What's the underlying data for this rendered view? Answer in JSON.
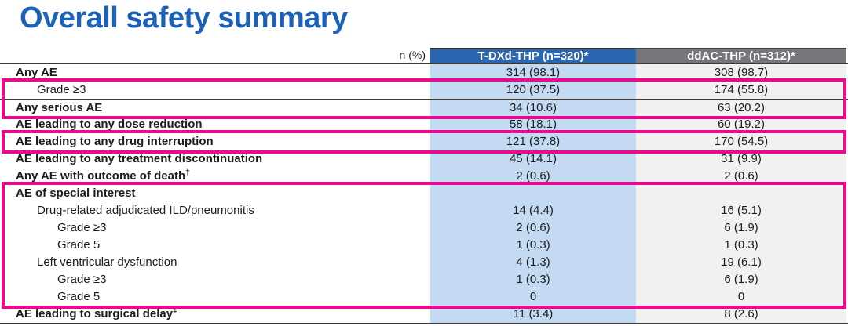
{
  "title": "Overall safety summary",
  "colors": {
    "title_blue": "#1c61b8",
    "header_blue": "#2a67b0",
    "header_gray": "#75767a",
    "tdxd_column_band": "#c4daf3",
    "ddac_column_band": "#f2f1f1",
    "highlight_magenta": "#e90b8e",
    "rule_line": "#3a3a3c",
    "text": "#1c1c1c"
  },
  "table": {
    "unit_label": "n (%)",
    "columns": [
      {
        "label": "T-DXd-THP (n=320)*"
      },
      {
        "label": "ddAC-THP (n=312)*"
      }
    ],
    "rows": [
      {
        "label": "Any AE",
        "sup": "",
        "bold": true,
        "indent": 0,
        "values": [
          "314 (98.1)",
          "308 (98.7)"
        ]
      },
      {
        "label": "Grade ≥3",
        "sup": "",
        "bold": false,
        "indent": 1,
        "values": [
          "120 (37.5)",
          "174 (55.8)"
        ]
      },
      {
        "label": "Any serious AE",
        "sup": "",
        "bold": true,
        "indent": 0,
        "values": [
          "34 (10.6)",
          "63 (20.2)"
        ]
      },
      {
        "label": "AE leading to any dose reduction",
        "sup": "",
        "bold": true,
        "indent": 0,
        "values": [
          "58 (18.1)",
          "60 (19.2)"
        ]
      },
      {
        "label": "AE leading to any drug interruption",
        "sup": "",
        "bold": true,
        "indent": 0,
        "values": [
          "121 (37.8)",
          "170 (54.5)"
        ]
      },
      {
        "label": "AE leading to any treatment discontinuation",
        "sup": "",
        "bold": true,
        "indent": 0,
        "values": [
          "45 (14.1)",
          "31 (9.9)"
        ]
      },
      {
        "label": "Any AE with outcome of death",
        "sup": "†",
        "bold": true,
        "indent": 0,
        "values": [
          "2 (0.6)",
          "2 (0.6)"
        ]
      },
      {
        "label": "AE of special interest",
        "sup": "",
        "bold": true,
        "indent": 0,
        "values": [
          "",
          ""
        ]
      },
      {
        "label": "Drug-related adjudicated ILD/pneumonitis",
        "sup": "",
        "bold": false,
        "indent": 1,
        "values": [
          "14 (4.4)",
          "16 (5.1)"
        ]
      },
      {
        "label": "Grade ≥3",
        "sup": "",
        "bold": false,
        "indent": 2,
        "values": [
          "2 (0.6)",
          "6 (1.9)"
        ]
      },
      {
        "label": "Grade 5",
        "sup": "",
        "bold": false,
        "indent": 2,
        "values": [
          "1 (0.3)",
          "1 (0.3)"
        ]
      },
      {
        "label": "Left ventricular dysfunction",
        "sup": "",
        "bold": false,
        "indent": 1,
        "values": [
          "4 (1.3)",
          "19 (6.1)"
        ]
      },
      {
        "label": "Grade ≥3",
        "sup": "",
        "bold": false,
        "indent": 2,
        "values": [
          "1 (0.3)",
          "6 (1.9)"
        ]
      },
      {
        "label": "Grade 5",
        "sup": "",
        "bold": false,
        "indent": 2,
        "values": [
          "0",
          "0"
        ]
      },
      {
        "label": "AE leading to surgical delay",
        "sup": "‡",
        "bold": true,
        "indent": 0,
        "values": [
          "11 (3.4)",
          "8 (2.6)"
        ]
      }
    ],
    "highlights": [
      {
        "start": 2,
        "end": 3
      },
      {
        "start": 5,
        "end": 5
      },
      {
        "start": 8,
        "end": 14
      }
    ]
  }
}
